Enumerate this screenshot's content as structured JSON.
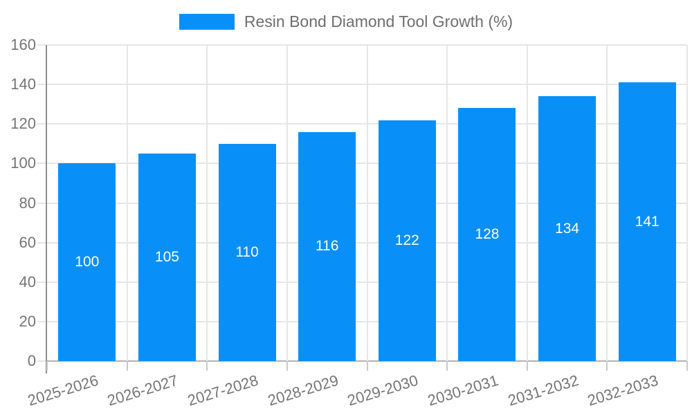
{
  "chart_data": {
    "type": "bar",
    "title": "Resin Bond Diamond Tool Growth (%)",
    "legend": {
      "position": "top-center",
      "entries": [
        "Resin Bond Diamond Tool Growth (%)"
      ]
    },
    "categories": [
      "2025-2026",
      "2026-2027",
      "2027-2028",
      "2028-2029",
      "2029-2030",
      "2030-2031",
      "2031-2032",
      "2032-2033"
    ],
    "values": [
      100,
      105,
      110,
      116,
      122,
      128,
      134,
      141
    ],
    "value_labels": [
      "100",
      "105",
      "110",
      "116",
      "122",
      "128",
      "134",
      "141"
    ],
    "value_labels_position": "inside-center",
    "xlabel": "",
    "ylabel": "",
    "ylim": [
      0,
      160
    ],
    "ytick_step": 20,
    "yticks": [
      0,
      20,
      40,
      60,
      80,
      100,
      120,
      140,
      160
    ],
    "grid": true,
    "colors": {
      "bar": "#0990f8",
      "grid": "#e6e6e6",
      "axis": "#8f8f8f",
      "baseline": "#b2b2b2",
      "tick": "#c9c9c9",
      "tick_text": "#757575",
      "title_text": "#6e6e6e",
      "bar_label": "#ffffff",
      "background": "#ffffff"
    }
  }
}
